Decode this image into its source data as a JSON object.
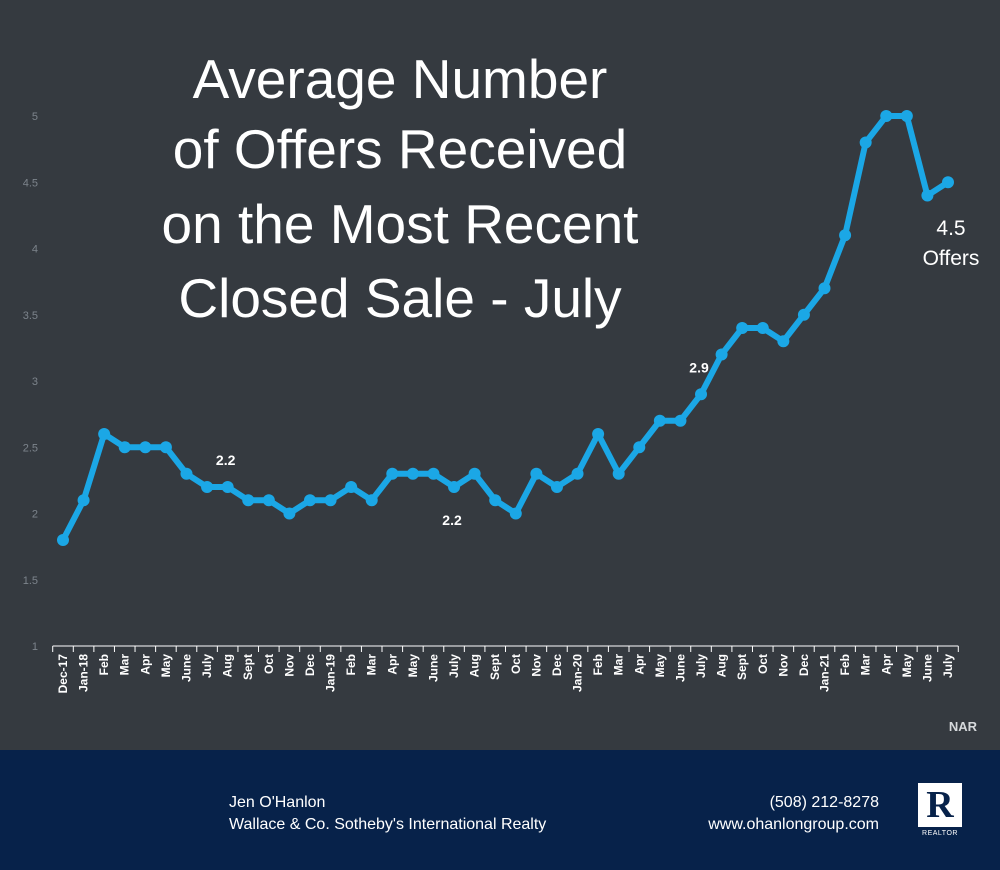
{
  "chart_data": {
    "type": "line",
    "title_lines": [
      "Average Number",
      "of Offers Received",
      "on the Most Recent",
      "Closed Sale - July"
    ],
    "categories": [
      "Dec-17",
      "Jan-18",
      "Feb",
      "Mar",
      "Apr",
      "May",
      "June",
      "July",
      "Aug",
      "Sept",
      "Oct",
      "Nov",
      "Dec",
      "Jan-19",
      "Feb",
      "Mar",
      "Apr",
      "May",
      "June",
      "July",
      "Aug",
      "Sept",
      "Oct",
      "Nov",
      "Dec",
      "Jan-20",
      "Feb",
      "Mar",
      "Apr",
      "May",
      "June",
      "July",
      "Aug",
      "Sept",
      "Oct",
      "Nov",
      "Dec",
      "Jan-21",
      "Feb",
      "Mar",
      "Apr",
      "May",
      "June",
      "July"
    ],
    "series": [
      {
        "values": [
          1.8,
          2.1,
          2.6,
          2.5,
          2.5,
          2.5,
          2.3,
          2.2,
          2.2,
          2.1,
          2.1,
          2.0,
          2.1,
          2.1,
          2.2,
          2.1,
          2.3,
          2.3,
          2.3,
          2.2,
          2.3,
          2.1,
          2.0,
          2.3,
          2.2,
          2.3,
          2.6,
          2.3,
          2.5,
          2.7,
          2.7,
          2.9,
          3.2,
          3.4,
          3.4,
          3.3,
          3.5,
          3.7,
          4.1,
          4.8,
          5.0,
          5.0,
          4.4,
          4.5
        ],
        "color": "#1ba7e6"
      }
    ],
    "y_ticks": [
      "1",
      "1.5",
      "2",
      "2.5",
      "3",
      "3.5",
      "4",
      "4.5",
      "5"
    ],
    "ylim": [
      1,
      5
    ],
    "grid": false,
    "annotations": [
      {
        "index": 8,
        "text": "2.2",
        "position": "above"
      },
      {
        "index": 19,
        "text": "2.2",
        "position": "below"
      },
      {
        "index": 31,
        "text": "2.9",
        "position": "above"
      }
    ],
    "end_label": {
      "index": 43,
      "lines": [
        "4.5",
        "Offers"
      ]
    },
    "source": "NAR"
  },
  "footer": {
    "agent_name": "Jen O'Hanlon",
    "agency": "Wallace & Co. Sotheby's International Realty",
    "phone": "(508) 212-8278",
    "website": "www.ohanlongroup.com",
    "logo_letter": "R",
    "logo_text": "REALTOR"
  }
}
